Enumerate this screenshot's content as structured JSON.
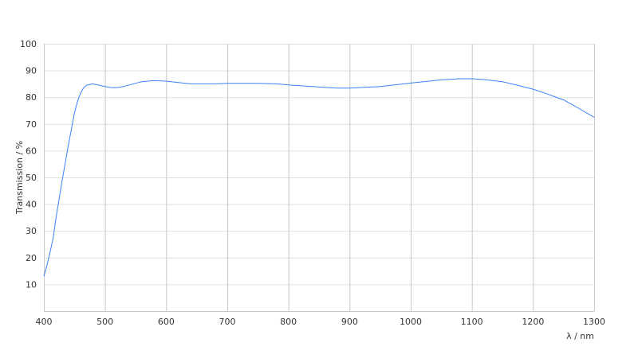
{
  "chart_data": {
    "type": "line",
    "title": "",
    "xlabel": "λ / nm",
    "ylabel": "Transmission / %",
    "xlim": [
      400,
      1300
    ],
    "ylim": [
      0,
      100
    ],
    "x_ticks": [
      400,
      500,
      600,
      700,
      800,
      900,
      1000,
      1100,
      1200,
      1300
    ],
    "y_ticks": [
      10,
      20,
      30,
      40,
      50,
      60,
      70,
      80,
      90,
      100
    ],
    "grid": true,
    "line_color": "#3b82f6",
    "series": [
      {
        "x": [
          400,
          405,
          410,
          415,
          420,
          430,
          440,
          450,
          455,
          460,
          465,
          470,
          480,
          490,
          500,
          510,
          520,
          530,
          540,
          550,
          560,
          570,
          580,
          600,
          620,
          640,
          660,
          680,
          700,
          750,
          780,
          800,
          850,
          880,
          900,
          950,
          1000,
          1050,
          1080,
          1100,
          1120,
          1150,
          1180,
          1200,
          1220,
          1250,
          1270,
          1300
        ],
        "y": [
          13,
          17,
          22,
          27,
          35,
          49,
          62,
          74,
          78.5,
          81.5,
          83.5,
          84.5,
          85,
          84.5,
          84,
          83.6,
          83.6,
          84,
          84.6,
          85.2,
          85.8,
          86,
          86.2,
          86,
          85.5,
          85,
          85,
          85,
          85.2,
          85.2,
          85,
          84.6,
          83.8,
          83.4,
          83.4,
          84,
          85.3,
          86.5,
          86.9,
          86.9,
          86.6,
          85.8,
          84.2,
          83,
          81.5,
          79,
          76.5,
          72.5
        ]
      }
    ]
  }
}
